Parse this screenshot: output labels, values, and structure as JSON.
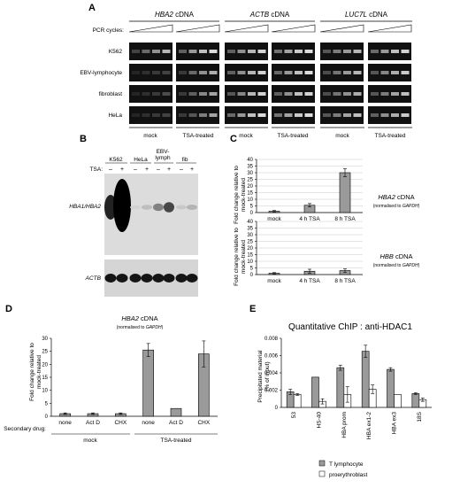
{
  "panel_letters": [
    "A",
    "B",
    "C",
    "D",
    "E"
  ],
  "panel_a": {
    "cdna_headers": [
      {
        "gene": "HBA2",
        "suffix": " cDNA"
      },
      {
        "gene": "ACTB",
        "suffix": " cDNA"
      },
      {
        "gene": "LUC7L",
        "suffix": " cDNA"
      }
    ],
    "pcr_cycles_label": "PCR cycles:",
    "row_labels": [
      "K562",
      "EBV-lymphocyte",
      "fibroblast",
      "HeLa"
    ],
    "condition_labels": [
      "mock",
      "TSA-treated"
    ],
    "band_intensity": [
      [
        [
          0.15,
          0.35,
          0.55,
          0.75
        ],
        [
          0.3,
          0.6,
          0.8,
          0.95
        ],
        [
          0.3,
          0.55,
          0.75,
          0.9
        ],
        [
          0.4,
          0.65,
          0.85,
          0.95
        ],
        [
          0.25,
          0.45,
          0.6,
          0.75
        ],
        [
          0.35,
          0.6,
          0.8,
          0.9
        ]
      ],
      [
        [
          0.0,
          0.05,
          0.1,
          0.15
        ],
        [
          0.1,
          0.35,
          0.55,
          0.7
        ],
        [
          0.3,
          0.55,
          0.75,
          0.9
        ],
        [
          0.35,
          0.6,
          0.8,
          0.95
        ],
        [
          0.2,
          0.4,
          0.6,
          0.75
        ],
        [
          0.25,
          0.5,
          0.7,
          0.85
        ]
      ],
      [
        [
          0.0,
          0.05,
          0.1,
          0.2
        ],
        [
          0.1,
          0.3,
          0.5,
          0.65
        ],
        [
          0.25,
          0.5,
          0.75,
          0.9
        ],
        [
          0.3,
          0.55,
          0.8,
          0.9
        ],
        [
          0.2,
          0.4,
          0.55,
          0.7
        ],
        [
          0.25,
          0.45,
          0.65,
          0.8
        ]
      ],
      [
        [
          0.0,
          0.05,
          0.1,
          0.15
        ],
        [
          0.1,
          0.25,
          0.45,
          0.65
        ],
        [
          0.35,
          0.6,
          0.8,
          0.95
        ],
        [
          0.4,
          0.65,
          0.85,
          0.95
        ],
        [
          0.25,
          0.45,
          0.65,
          0.8
        ],
        [
          0.3,
          0.55,
          0.7,
          0.85
        ]
      ]
    ]
  },
  "panel_b": {
    "cell_lines": [
      "K562",
      "HeLa",
      "EBV-lymph",
      "fib"
    ],
    "tsa_label": "TSA:",
    "tsa_signs": [
      "–",
      "+",
      "–",
      "+",
      "–",
      "+",
      "–",
      "+"
    ],
    "probe_top": "HBA1/HBA2",
    "probe_bottom": "ACTB"
  },
  "panel_c": {
    "ylabel": "Fold change relative to mock-treated",
    "chart_data": [
      {
        "type": "bar",
        "gene": "HBA2",
        "title": "HBA2 cDNA",
        "subtitle": "(normalised to GAPDH)",
        "categories": [
          "mock",
          "4 h TSA",
          "8 h TSA"
        ],
        "values": [
          1,
          5.5,
          30
        ],
        "errors": [
          0.6,
          1.3,
          3
        ],
        "ylim": [
          0,
          40
        ],
        "yticks": [
          0,
          5,
          10,
          15,
          20,
          25,
          30,
          35,
          40
        ],
        "ylabel": "Fold change relative to mock-treated",
        "grid": true
      },
      {
        "type": "bar",
        "gene": "HBB",
        "title": "HBB cDNA",
        "subtitle": "(normalised to GAPDH)",
        "categories": [
          "mock",
          "4 h TSA",
          "8 h TSA"
        ],
        "values": [
          1,
          2.5,
          3
        ],
        "errors": [
          0.5,
          1.5,
          1.3
        ],
        "ylim": [
          0,
          40
        ],
        "yticks": [
          0,
          5,
          10,
          15,
          20,
          25,
          30,
          35,
          40
        ],
        "ylabel": "Fold change relative to mock-treated",
        "grid": true
      }
    ]
  },
  "panel_d": {
    "chart_data": {
      "type": "bar",
      "title_gene": "HBA2",
      "title_suffix": " cDNA",
      "subtitle": "(normalised to GAPDH)",
      "secondary_drug_label": "Secondary drug:",
      "categories": [
        "none",
        "Act D",
        "CHX",
        "none",
        "Act D",
        "CHX"
      ],
      "groups": [
        "mock",
        "TSA-treated"
      ],
      "values": [
        1,
        1,
        1,
        25.5,
        3,
        24
      ],
      "errors": [
        0.3,
        0.3,
        0.3,
        2.5,
        0,
        5
      ],
      "ylim": [
        0,
        30
      ],
      "yticks": [
        0,
        5,
        10,
        15,
        20,
        25,
        30
      ],
      "ylabel": "Fold change relative to mock-treated"
    }
  },
  "panel_e": {
    "chart_data": {
      "type": "bar",
      "title": "Quantitative ChIP : anti-HDAC1",
      "ylabel": "Precipitated material (% of input)",
      "categories": [
        "53",
        "HS-40",
        "HBA prom",
        "HBA ex1-2",
        "HBA ex3",
        "18S"
      ],
      "series": [
        {
          "name": "T lymphocyte",
          "values": [
            0.0018,
            0.0035,
            0.0046,
            0.0065,
            0.0044,
            0.0016
          ],
          "errors": [
            0.0003,
            0,
            0.0003,
            0.0007,
            0.0002,
            0.0001
          ],
          "color": "#9a9a9a"
        },
        {
          "name": "proerythroblast",
          "values": [
            0.0015,
            0.0007,
            0.0015,
            0.0021,
            0.0015,
            0.0009
          ],
          "errors": [
            0.0001,
            0.0003,
            0.0009,
            0.0005,
            0,
            0.0002
          ],
          "color": "#ffffff"
        }
      ],
      "ylim": [
        0,
        0.008
      ],
      "yticks": [
        "0",
        "0.002",
        "0.004",
        "0.006",
        "0.008"
      ],
      "legend_placement": "bottom-right"
    }
  },
  "colors": {
    "bar_gray": "#9a9a9a",
    "gel_black": "#111111",
    "gridline": "#c8c8c8"
  }
}
